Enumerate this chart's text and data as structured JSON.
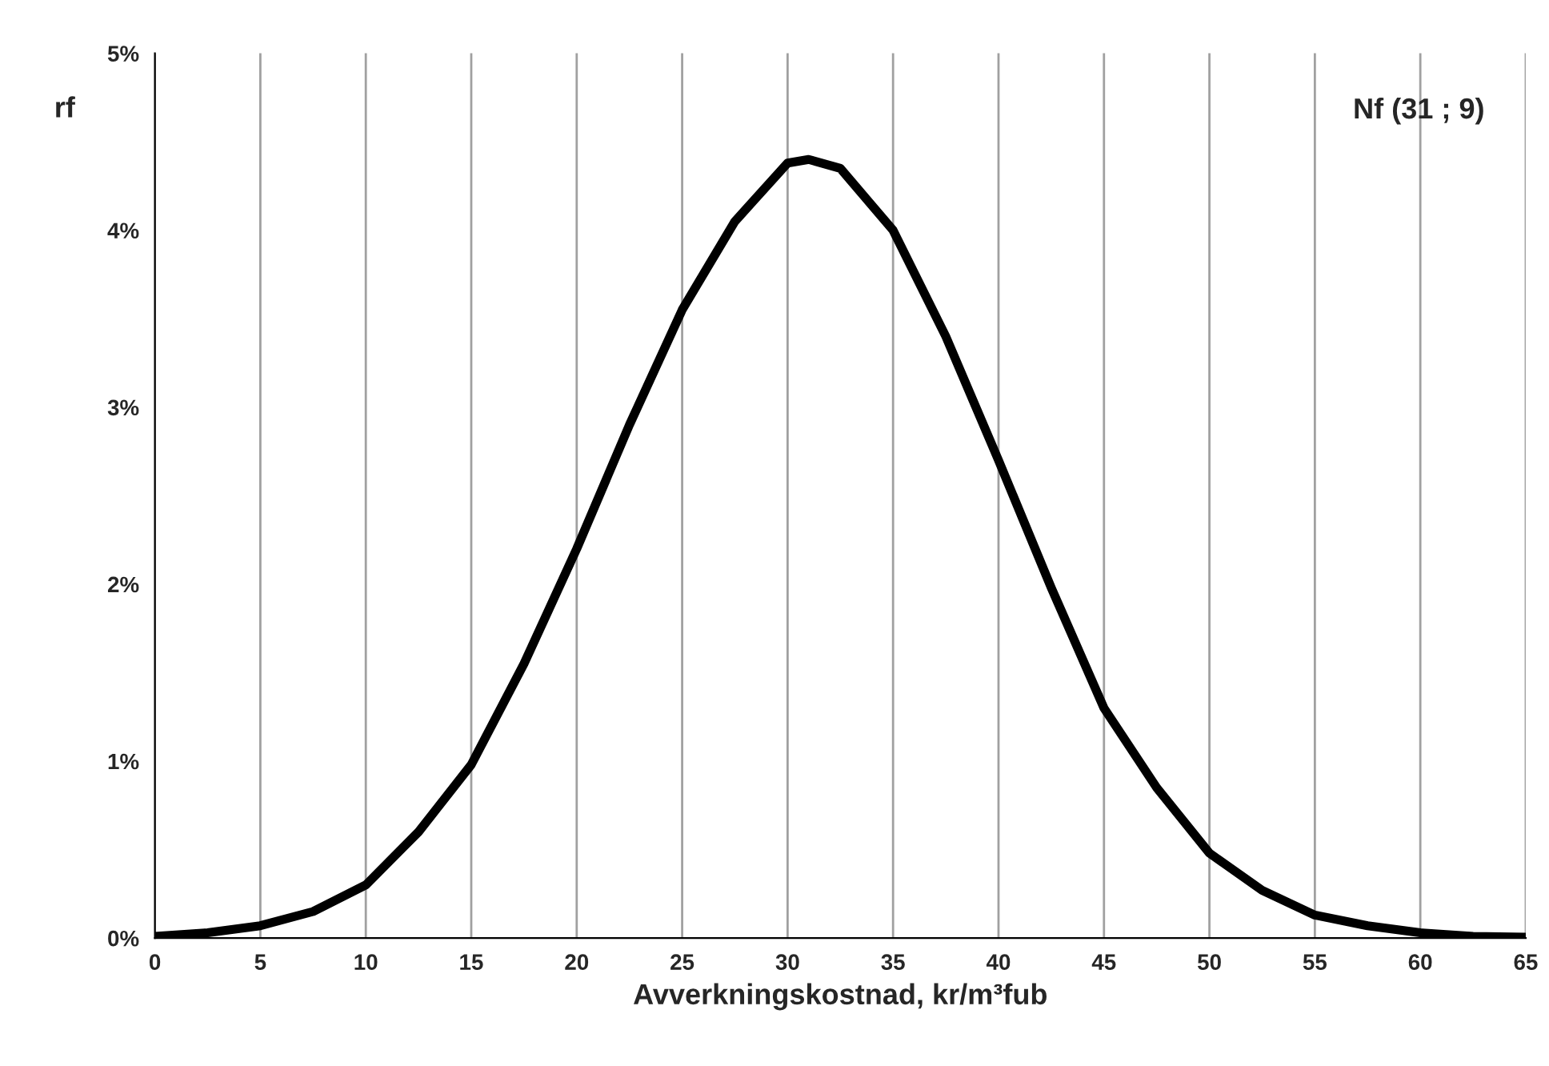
{
  "chart_data": {
    "type": "line",
    "xlabel": "Avverkningskostnad, kr/m³fub",
    "ylabel": "rf",
    "annotations": [
      "Nf (31 ; 9)"
    ],
    "x": [
      0,
      2.5,
      5,
      7.5,
      10,
      12.5,
      15,
      17.5,
      20,
      22.5,
      25,
      27.5,
      30,
      31,
      32.5,
      35,
      37.5,
      40,
      42.5,
      45,
      47.5,
      50,
      52.5,
      55,
      57.5,
      60,
      62.5,
      65
    ],
    "series": [
      {
        "color": "#000000",
        "values": [
          0.01,
          0.03,
          0.07,
          0.15,
          0.3,
          0.6,
          0.98,
          1.55,
          2.2,
          2.9,
          3.55,
          4.05,
          4.38,
          4.4,
          4.35,
          4.0,
          3.4,
          2.7,
          1.98,
          1.3,
          0.85,
          0.48,
          0.27,
          0.13,
          0.07,
          0.03,
          0.01,
          0.005
        ]
      }
    ],
    "xlim": [
      0,
      65
    ],
    "xticks": [
      0,
      5,
      10,
      15,
      20,
      25,
      30,
      35,
      40,
      45,
      50,
      55,
      60,
      65
    ],
    "ylim": [
      0,
      5
    ],
    "yticks": [
      {
        "value": 0,
        "label": "0%"
      },
      {
        "value": 1,
        "label": "1%"
      },
      {
        "value": 2,
        "label": "2%"
      },
      {
        "value": 3,
        "label": "3%"
      },
      {
        "value": 4,
        "label": "4%"
      },
      {
        "value": 5,
        "label": "5%"
      }
    ],
    "grid": "x",
    "marker": "none",
    "line_style": "solid"
  }
}
